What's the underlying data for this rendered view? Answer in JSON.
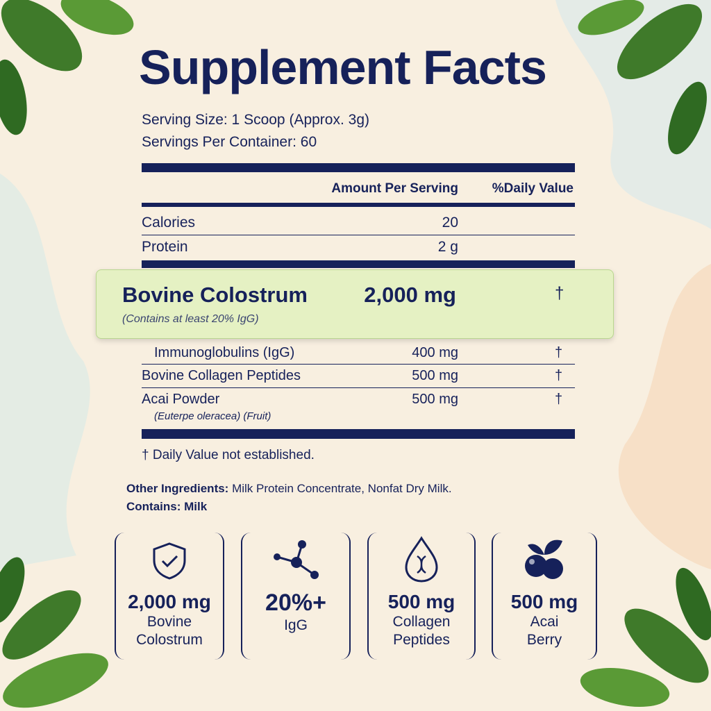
{
  "title": "Supplement Facts",
  "serving_size": "Serving Size: 1 Scoop (Approx. 3g)",
  "servings_per_container": "Servings Per Container: 60",
  "table": {
    "headers": [
      "Amount Per Serving",
      "%Daily Value"
    ],
    "rows": [
      {
        "name": "Calories",
        "amount": "20"
      },
      {
        "name": "Protein",
        "amount": "2 g"
      },
      {
        "name": "Bovine Colostrum",
        "amount": "2,000 mg",
        "dv": "†",
        "note": "(Contains at least 20% IgG)"
      },
      {
        "name": "Immunoglobulins (IgG)",
        "amount": "400 mg",
        "dv": "†"
      },
      {
        "name": "Bovine Collagen Peptides",
        "amount": "500 mg",
        "dv": "†"
      },
      {
        "name": "Acai Powder",
        "amount": "500 mg",
        "dv": "†",
        "note": "(Euterpe oleracea) (Fruit)"
      }
    ]
  },
  "footnote": "† Daily Value not established.",
  "other_ingredients": {
    "label": "Other Ingredients:",
    "text": "Milk Protein Concentrate, Nonfat Dry Milk."
  },
  "contains": "Contains: Milk",
  "badges": [
    {
      "value": "2,000 mg",
      "label": [
        "Bovine",
        "Colostrum"
      ]
    },
    {
      "value": "20%+",
      "label": [
        "IgG"
      ]
    },
    {
      "value": "500 mg",
      "label": [
        "Collagen",
        "Peptides"
      ]
    },
    {
      "value": "500 mg",
      "label": [
        "Acai",
        "Berry"
      ]
    }
  ]
}
